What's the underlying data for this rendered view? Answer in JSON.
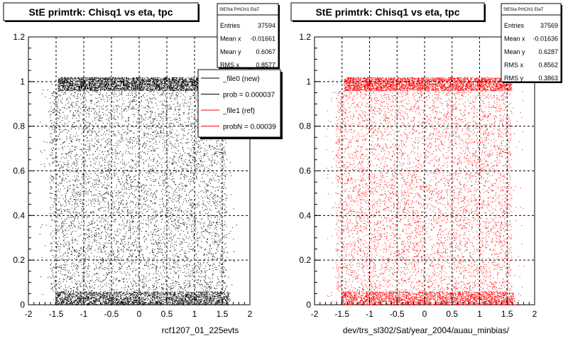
{
  "colors": {
    "background": "#ffffff",
    "frame": "#000000",
    "grid": "#000000",
    "series_new": "#000000",
    "series_ref": "#ff0000"
  },
  "footer_text": "rcf1207_01_225evts",
  "chart_data": [
    {
      "type": "scatter",
      "title": "StE primtrk: Chisq1 vs eta, tpc",
      "xlabel": "rcf1207_01_225evts",
      "ylabel": "",
      "xlim": [
        -2,
        2
      ],
      "ylim": [
        0,
        1.2
      ],
      "xticks": [
        "-2",
        "-1.5",
        "-1",
        "-0.5",
        "0",
        "0.5",
        "1",
        "1.5",
        "2"
      ],
      "yticks": [
        "0",
        "0.2",
        "0.4",
        "0.6",
        "0.8",
        "1",
        "1.2"
      ],
      "grid": true,
      "series": [
        {
          "name": "_file0 (new)",
          "color": "#000000",
          "density": {
            "x_range": [
              -1.62,
              1.58
            ],
            "band_top": [
              0.96,
              1.02
            ],
            "band_bottom": [
              0.0,
              0.06
            ]
          }
        }
      ],
      "stats_box": {
        "title": "StESta PrhChi1 EtaT",
        "rows": [
          {
            "label": "Entries",
            "value": "37594"
          },
          {
            "label": "Mean x",
            "value": "-0.01661"
          },
          {
            "label": "Mean y",
            "value": "0.6067"
          },
          {
            "label": "RMS x",
            "value": "0.8577"
          }
        ]
      },
      "legend": {
        "placement": "top-right",
        "entries": [
          {
            "label": "_file0 (new)",
            "color": "#000000"
          },
          {
            "label": "prob = 0.000037",
            "color": "#000000"
          },
          {
            "label": "_file1 (ref)",
            "color": "#ff0000"
          },
          {
            "label": "probN = 0.00039",
            "color": "#ff0000"
          }
        ]
      }
    },
    {
      "type": "scatter",
      "title": "StE primtrk: Chisq1 vs eta, tpc",
      "xlabel": "dev/trs_sl302/Sat/year_2004/auau_minbias/",
      "ylabel": "",
      "xlim": [
        -2,
        2
      ],
      "ylim": [
        0,
        1.2
      ],
      "xticks": [
        "-2",
        "-1.5",
        "-1",
        "-0.5",
        "0",
        "0.5",
        "1",
        "1.5",
        "2"
      ],
      "yticks": [
        "0",
        "0.2",
        "0.4",
        "0.6",
        "0.8",
        "1",
        "1.2"
      ],
      "grid": true,
      "series": [
        {
          "name": "_file1 (ref)",
          "color": "#ff0000",
          "density": {
            "x_range": [
              -1.62,
              1.58
            ],
            "band_top": [
              0.96,
              1.02
            ],
            "band_bottom": [
              0.0,
              0.06
            ]
          }
        }
      ],
      "stats_box": {
        "title": "StESta PrhChi1 EtaT",
        "rows": [
          {
            "label": "Entries",
            "value": "37569"
          },
          {
            "label": "Mean x",
            "value": "-0.01636"
          },
          {
            "label": "Mean y",
            "value": "0.6287"
          },
          {
            "label": "RMS x",
            "value": "0.8562"
          },
          {
            "label": "RMS y",
            "value": "0.3863"
          }
        ]
      }
    }
  ]
}
